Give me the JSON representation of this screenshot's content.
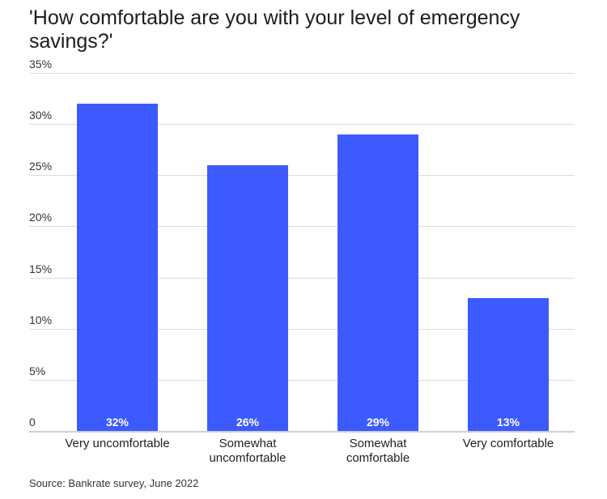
{
  "chart_data": {
    "type": "bar",
    "title": "'How comfortable are you with your level of emergency savings?'",
    "categories": [
      "Very uncomfortable",
      "Somewhat uncomfortable",
      "Somewhat comfortable",
      "Very comfortable"
    ],
    "category_lines": [
      [
        "Very uncomfortable"
      ],
      [
        "Somewhat",
        "uncomfortable"
      ],
      [
        "Somewhat",
        "comfortable"
      ],
      [
        "Very comfortable"
      ]
    ],
    "values": [
      32,
      26,
      29,
      13
    ],
    "data_labels": [
      "32%",
      "26%",
      "29%",
      "13%"
    ],
    "xlabel": "",
    "ylabel": "",
    "ylim": [
      0,
      35
    ],
    "yticks": [
      "0",
      "5%",
      "10%",
      "15%",
      "20%",
      "25%",
      "30%",
      "35%"
    ],
    "ytick_values": [
      0,
      5,
      10,
      15,
      20,
      25,
      30,
      35
    ],
    "grid": true,
    "legend": null,
    "bar_color": "#3d5afe",
    "source": "Source: Bankrate survey, June 2022"
  }
}
